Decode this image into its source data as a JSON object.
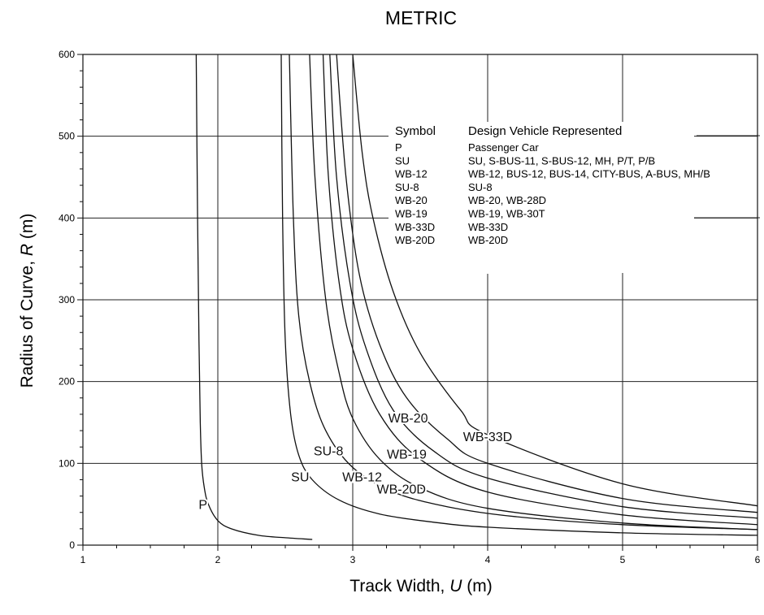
{
  "chart_data": {
    "type": "line",
    "title": "METRIC",
    "xlabel": {
      "prefix": "Track Width, ",
      "var": "U",
      "suffix": " (m)"
    },
    "ylabel": {
      "prefix": "Radius of Curve, ",
      "var": "R",
      "suffix": " (m)"
    },
    "xlim": [
      1,
      6
    ],
    "ylim": [
      0,
      600
    ],
    "xticks": [
      1,
      2,
      3,
      4,
      5,
      6
    ],
    "yticks": [
      0,
      100,
      200,
      300,
      400,
      500,
      600
    ],
    "grid": true,
    "legend_placement": "upper-right",
    "legend": {
      "header_symbol": "Symbol",
      "header_vehicle": "Design Vehicle Represented",
      "rows": [
        {
          "symbol": "P",
          "vehicles": "Passenger Car"
        },
        {
          "symbol": "SU",
          "vehicles": "SU, S-BUS-11, S-BUS-12, MH, P/T, P/B"
        },
        {
          "symbol": "WB-12",
          "vehicles": "WB-12, BUS-12, BUS-14, CITY-BUS, A-BUS, MH/B"
        },
        {
          "symbol": "SU-8",
          "vehicles": "SU-8"
        },
        {
          "symbol": "WB-20",
          "vehicles": "WB-20, WB-28D"
        },
        {
          "symbol": "WB-19",
          "vehicles": "WB-19, WB-30T"
        },
        {
          "symbol": "WB-33D",
          "vehicles": "WB-33D"
        },
        {
          "symbol": "WB-20D",
          "vehicles": "WB-20D"
        }
      ]
    },
    "series": [
      {
        "name": "P",
        "points": [
          [
            1.84,
            600
          ],
          [
            1.85,
            400
          ],
          [
            1.86,
            250
          ],
          [
            1.87,
            150
          ],
          [
            1.88,
            100
          ],
          [
            1.9,
            70
          ],
          [
            1.93,
            50
          ],
          [
            2.0,
            30
          ],
          [
            2.1,
            20
          ],
          [
            2.3,
            12
          ],
          [
            2.5,
            9
          ],
          [
            2.7,
            7
          ]
        ]
      },
      {
        "name": "SU",
        "points": [
          [
            2.47,
            600
          ],
          [
            2.48,
            400
          ],
          [
            2.5,
            250
          ],
          [
            2.54,
            160
          ],
          [
            2.6,
            110
          ],
          [
            2.7,
            80
          ],
          [
            2.9,
            55
          ],
          [
            3.2,
            38
          ],
          [
            3.6,
            28
          ],
          [
            4.0,
            22
          ],
          [
            5.0,
            15
          ],
          [
            6.0,
            12
          ]
        ]
      },
      {
        "name": "SU-8",
        "points": [
          [
            2.53,
            600
          ],
          [
            2.56,
            400
          ],
          [
            2.6,
            280
          ],
          [
            2.68,
            200
          ],
          [
            2.8,
            140
          ],
          [
            3.0,
            95
          ],
          [
            3.3,
            65
          ],
          [
            3.7,
            47
          ],
          [
            4.2,
            35
          ],
          [
            5.0,
            25
          ],
          [
            6.0,
            19
          ]
        ]
      },
      {
        "name": "WB-12",
        "points": [
          [
            2.68,
            600
          ],
          [
            2.72,
            450
          ],
          [
            2.8,
            300
          ],
          [
            2.9,
            210
          ],
          [
            3.0,
            155
          ],
          [
            3.2,
            105
          ],
          [
            3.5,
            70
          ],
          [
            4.0,
            45
          ],
          [
            5.0,
            27
          ],
          [
            6.0,
            19
          ]
        ]
      },
      {
        "name": "WB-20D",
        "points": [
          [
            2.78,
            600
          ],
          [
            2.82,
            450
          ],
          [
            2.9,
            320
          ],
          [
            3.0,
            240
          ],
          [
            3.2,
            160
          ],
          [
            3.5,
            105
          ],
          [
            4.0,
            65
          ],
          [
            5.0,
            37
          ],
          [
            6.0,
            25
          ]
        ]
      },
      {
        "name": "WB-19",
        "points": [
          [
            2.83,
            600
          ],
          [
            2.88,
            450
          ],
          [
            2.98,
            320
          ],
          [
            3.1,
            240
          ],
          [
            3.3,
            165
          ],
          [
            3.6,
            115
          ],
          [
            4.0,
            82
          ],
          [
            5.0,
            47
          ],
          [
            6.0,
            33
          ]
        ]
      },
      {
        "name": "WB-20",
        "points": [
          [
            2.88,
            600
          ],
          [
            2.95,
            450
          ],
          [
            3.05,
            330
          ],
          [
            3.2,
            245
          ],
          [
            3.4,
            180
          ],
          [
            3.7,
            130
          ],
          [
            4.0,
            100
          ],
          [
            5.0,
            57
          ],
          [
            6.0,
            40
          ]
        ]
      },
      {
        "name": "WB-33D",
        "points": [
          [
            3.0,
            600
          ],
          [
            3.07,
            480
          ],
          [
            3.15,
            400
          ],
          [
            3.3,
            310
          ],
          [
            3.5,
            235
          ],
          [
            3.8,
            165
          ],
          [
            4.0,
            135
          ],
          [
            5.0,
            75
          ],
          [
            6.0,
            48
          ]
        ]
      }
    ],
    "curve_labels": [
      {
        "name": "P",
        "x": 1.89,
        "y": 44
      },
      {
        "name": "SU",
        "x": 2.61,
        "y": 78
      },
      {
        "name": "SU-8",
        "x": 2.82,
        "y": 110
      },
      {
        "name": "WB-12",
        "x": 3.07,
        "y": 78
      },
      {
        "name": "WB-20D",
        "x": 3.36,
        "y": 63
      },
      {
        "name": "WB-19",
        "x": 3.4,
        "y": 106
      },
      {
        "name": "WB-20",
        "x": 3.41,
        "y": 150
      },
      {
        "name": "WB-33D",
        "x": 4.0,
        "y": 127
      }
    ]
  }
}
